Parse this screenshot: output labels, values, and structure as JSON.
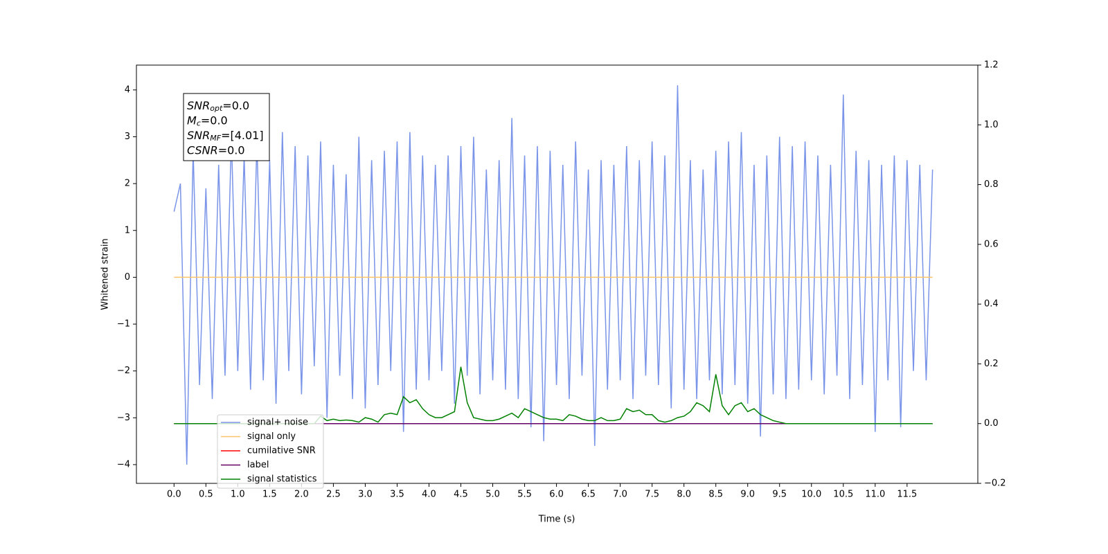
{
  "chart_data": {
    "type": "line",
    "xlabel": "Time (s)",
    "ylabel": "Whitened strain",
    "annotation": [
      {
        "var": "SNR",
        "sub": "opt",
        "rest": "=0.0"
      },
      {
        "var": "M",
        "sub": "c",
        "rest": "=0.0"
      },
      {
        "var": "SNR",
        "sub": "MF",
        "rest": "=[4.01]"
      },
      {
        "var": "CSNR",
        "rest": "=0.0"
      }
    ],
    "legend": "lower left",
    "xlim": [
      -0.59,
      12.61
    ],
    "ylim": [
      -4.4,
      4.53
    ],
    "y2lim": [
      -0.2,
      1.2
    ],
    "xticks": [
      {
        "value": 0,
        "label": "0.0"
      },
      0.5,
      {
        "value": 1,
        "label": "1.0"
      },
      1.5,
      {
        "value": 2,
        "label": "2.0"
      },
      2.5,
      {
        "value": 3,
        "label": "3.0"
      },
      3.5,
      {
        "value": 4,
        "label": "4.0"
      },
      4.5,
      {
        "value": 5,
        "label": "5.0"
      },
      5.5,
      {
        "value": 6,
        "label": "6.0"
      },
      6.5,
      {
        "value": 7,
        "label": "7.0"
      },
      7.5,
      {
        "value": 8,
        "label": "8.0"
      },
      8.5,
      {
        "value": 9,
        "label": "9.0"
      },
      9.5,
      {
        "value": 10,
        "label": "10.0"
      },
      10.5,
      {
        "value": 11,
        "label": "11.0"
      },
      11.5
    ],
    "yticks": [
      {
        "value": -4,
        "label": "−4"
      },
      {
        "value": -3,
        "label": "−3"
      },
      {
        "value": -2,
        "label": "−2"
      },
      {
        "value": -1,
        "label": "−1"
      },
      0,
      1,
      2,
      3,
      4
    ],
    "y2ticks": [
      {
        "value": -0.2,
        "label": "−0.2"
      },
      {
        "value": 0,
        "label": "0.0"
      },
      0.2,
      0.4,
      0.6,
      0.8,
      {
        "value": 1,
        "label": "1.0"
      },
      1.2
    ],
    "x": [
      0,
      0.1,
      0.2,
      0.3,
      0.4,
      0.5,
      0.6,
      0.7,
      0.8,
      0.9,
      1,
      1.1,
      1.2,
      1.3,
      1.4,
      1.5,
      1.6,
      1.7,
      1.8,
      1.9,
      2,
      2.1,
      2.2,
      2.3,
      2.4,
      2.5,
      2.6,
      2.7,
      2.8,
      2.9,
      3,
      3.1,
      3.2,
      3.3,
      3.4,
      3.5,
      3.6,
      3.7,
      3.8,
      3.9,
      4,
      4.1,
      4.2,
      4.3,
      4.4,
      4.5,
      4.6,
      4.7,
      4.8,
      4.9,
      5,
      5.1,
      5.2,
      5.3,
      5.4,
      5.5,
      5.6,
      5.7,
      5.8,
      5.9,
      6,
      6.1,
      6.2,
      6.3,
      6.4,
      6.5,
      6.6,
      6.7,
      6.8,
      6.9,
      7,
      7.1,
      7.2,
      7.3,
      7.4,
      7.5,
      7.6,
      7.7,
      7.8,
      7.9,
      8,
      8.1,
      8.2,
      8.3,
      8.4,
      8.5,
      8.6,
      8.7,
      8.8,
      8.9,
      9,
      9.1,
      9.2,
      9.3,
      9.4,
      9.5,
      9.6,
      9.7,
      9.8,
      9.9,
      10,
      10.1,
      10.2,
      10.3,
      10.4,
      10.5,
      10.6,
      10.7,
      10.8,
      10.9,
      11,
      11.1,
      11.2,
      11.3,
      11.4,
      11.5,
      11.6,
      11.7,
      11.8,
      11.9
    ],
    "series": [
      {
        "name": "signal+ noise",
        "color": "#7994e8",
        "values": [
          1.4,
          2.0,
          -4.0,
          2.7,
          -2.3,
          1.9,
          -2.6,
          2.4,
          -2.1,
          3.0,
          -2.0,
          2.6,
          -2.4,
          2.9,
          -2.2,
          2.5,
          -2.7,
          3.1,
          -2.0,
          2.8,
          -2.5,
          2.6,
          -1.9,
          2.9,
          -3.0,
          2.4,
          -2.1,
          2.2,
          -2.6,
          3.0,
          -2.8,
          2.5,
          -2.3,
          2.7,
          -2.0,
          2.9,
          -3.3,
          3.1,
          -2.4,
          2.6,
          -2.2,
          2.4,
          -2.0,
          2.6,
          -2.7,
          2.8,
          -2.1,
          3.0,
          -2.5,
          2.3,
          -2.2,
          2.5,
          -2.4,
          3.4,
          -2.6,
          2.6,
          -3.2,
          2.8,
          -3.5,
          2.7,
          -2.3,
          2.4,
          -2.6,
          2.9,
          -2.1,
          2.3,
          -3.6,
          2.5,
          -2.4,
          2.4,
          -2.2,
          2.8,
          -2.6,
          2.5,
          -2.1,
          2.9,
          -2.3,
          2.6,
          -2.8,
          4.1,
          -2.4,
          2.5,
          -2.6,
          2.3,
          -2.2,
          2.7,
          -2.5,
          2.9,
          -2.3,
          3.1,
          -2.7,
          2.4,
          -3.4,
          2.6,
          -2.5,
          3.0,
          -2.6,
          2.8,
          -2.4,
          2.9,
          -2.2,
          2.6,
          -2.5,
          2.4,
          -2.1,
          3.9,
          -2.6,
          2.7,
          -2.3,
          2.5,
          -3.3,
          2.4,
          -2.2,
          2.6,
          -3.2,
          2.5,
          -2.0,
          2.4,
          -2.2,
          2.3
        ]
      },
      {
        "name": "signal only",
        "color": "#fbc36a",
        "values": [
          0,
          0,
          0,
          0,
          0,
          0,
          0,
          0,
          0,
          0,
          0,
          0,
          0,
          0,
          0,
          0,
          0,
          0,
          0,
          0,
          0,
          0,
          0,
          0,
          0,
          0,
          0,
          0,
          0,
          0,
          0,
          0,
          0,
          0,
          0,
          0,
          0,
          0,
          0,
          0,
          0,
          0,
          0,
          0,
          0,
          0,
          0,
          0,
          0,
          0,
          0,
          0,
          0,
          0,
          0,
          0,
          0,
          0,
          0,
          0,
          0,
          0,
          0,
          0,
          0,
          0,
          0,
          0,
          0,
          0,
          0,
          0,
          0,
          0,
          0,
          0,
          0,
          0,
          0,
          0,
          0,
          0,
          0,
          0,
          0,
          0,
          0,
          0,
          0,
          0,
          0,
          0,
          0,
          0,
          0,
          0,
          0,
          0,
          0,
          0,
          0,
          0,
          0,
          0,
          0,
          0,
          0,
          0,
          0,
          0,
          0,
          0,
          0,
          0,
          0,
          0,
          0,
          0,
          0,
          0
        ]
      },
      {
        "name": "cumilative SNR",
        "color": "#ff0000",
        "axis": "y2",
        "values": [
          0,
          0,
          0,
          0,
          0,
          0,
          0,
          0,
          0,
          0,
          0,
          0,
          0,
          0,
          0,
          0,
          0,
          0,
          0,
          0,
          0,
          0,
          0,
          0,
          0,
          0,
          0,
          0,
          0,
          0,
          0,
          0,
          0,
          0,
          0,
          0,
          0,
          0,
          0,
          0,
          0,
          0,
          0,
          0,
          0,
          0,
          0,
          0,
          0,
          0,
          0,
          0,
          0,
          0,
          0,
          0,
          0,
          0,
          0,
          0,
          0,
          0,
          0,
          0,
          0,
          0,
          0,
          0,
          0,
          0,
          0,
          0,
          0,
          0,
          0,
          0,
          0,
          0,
          0,
          0,
          0,
          0,
          0,
          0,
          0,
          0,
          0,
          0,
          0,
          0,
          0,
          0,
          0,
          0,
          0,
          0,
          0,
          0,
          0,
          0,
          0,
          0,
          0,
          0,
          0,
          0,
          0,
          0,
          0,
          0,
          0,
          0,
          0,
          0,
          0,
          0,
          0,
          0,
          0,
          0
        ]
      },
      {
        "name": "label",
        "color": "#660066",
        "axis": "y2",
        "values": [
          0,
          0,
          0,
          0,
          0,
          0,
          0,
          0,
          0,
          0,
          0,
          0,
          0,
          0,
          0,
          0,
          0,
          0,
          0,
          0,
          0,
          0,
          0,
          0,
          0,
          0,
          0,
          0,
          0,
          0,
          0,
          0,
          0,
          0,
          0,
          0,
          0,
          0,
          0,
          0,
          0,
          0,
          0,
          0,
          0,
          0,
          0,
          0,
          0,
          0,
          0,
          0,
          0,
          0,
          0,
          0,
          0,
          0,
          0,
          0,
          0,
          0,
          0,
          0,
          0,
          0,
          0,
          0,
          0,
          0,
          0,
          0,
          0,
          0,
          0,
          0,
          0,
          0,
          0,
          0,
          0,
          0,
          0,
          0,
          0,
          0,
          0,
          0,
          0,
          0,
          0,
          0,
          0,
          0,
          0,
          0,
          0,
          0,
          0,
          0,
          0,
          0,
          0,
          0,
          0,
          0,
          0,
          0,
          0,
          0,
          0,
          0,
          0,
          0,
          0,
          0,
          0,
          0,
          0,
          0
        ]
      },
      {
        "name": "signal statistics",
        "color": "#008000",
        "axis": "y2",
        "values": [
          0,
          0,
          0,
          0,
          0,
          0,
          0,
          0,
          0,
          0,
          0,
          0,
          0,
          0,
          0,
          0,
          0,
          0,
          0,
          0,
          0,
          0,
          0,
          0.025,
          0.01,
          0.015,
          0.01,
          0.012,
          0.01,
          0.005,
          0.02,
          0.015,
          0.005,
          0.03,
          0.035,
          0.03,
          0.09,
          0.07,
          0.08,
          0.05,
          0.03,
          0.02,
          0.02,
          0.03,
          0.04,
          0.19,
          0.07,
          0.02,
          0.015,
          0.01,
          0.01,
          0.015,
          0.025,
          0.035,
          0.02,
          0.05,
          0.04,
          0.03,
          0.02,
          0.015,
          0.015,
          0.01,
          0.03,
          0.025,
          0.015,
          0.01,
          0.01,
          0.02,
          0.01,
          0.01,
          0.015,
          0.05,
          0.04,
          0.045,
          0.03,
          0.03,
          0.01,
          0.005,
          0.01,
          0.02,
          0.025,
          0.04,
          0.07,
          0.06,
          0.04,
          0.165,
          0.06,
          0.03,
          0.06,
          0.07,
          0.04,
          0.05,
          0.03,
          0.02,
          0.01,
          0.005,
          0,
          0,
          0,
          0,
          0,
          0,
          0,
          0,
          0,
          0,
          0,
          0,
          0,
          0,
          0,
          0,
          0,
          0,
          0,
          0,
          0,
          0,
          0,
          0
        ]
      }
    ]
  }
}
